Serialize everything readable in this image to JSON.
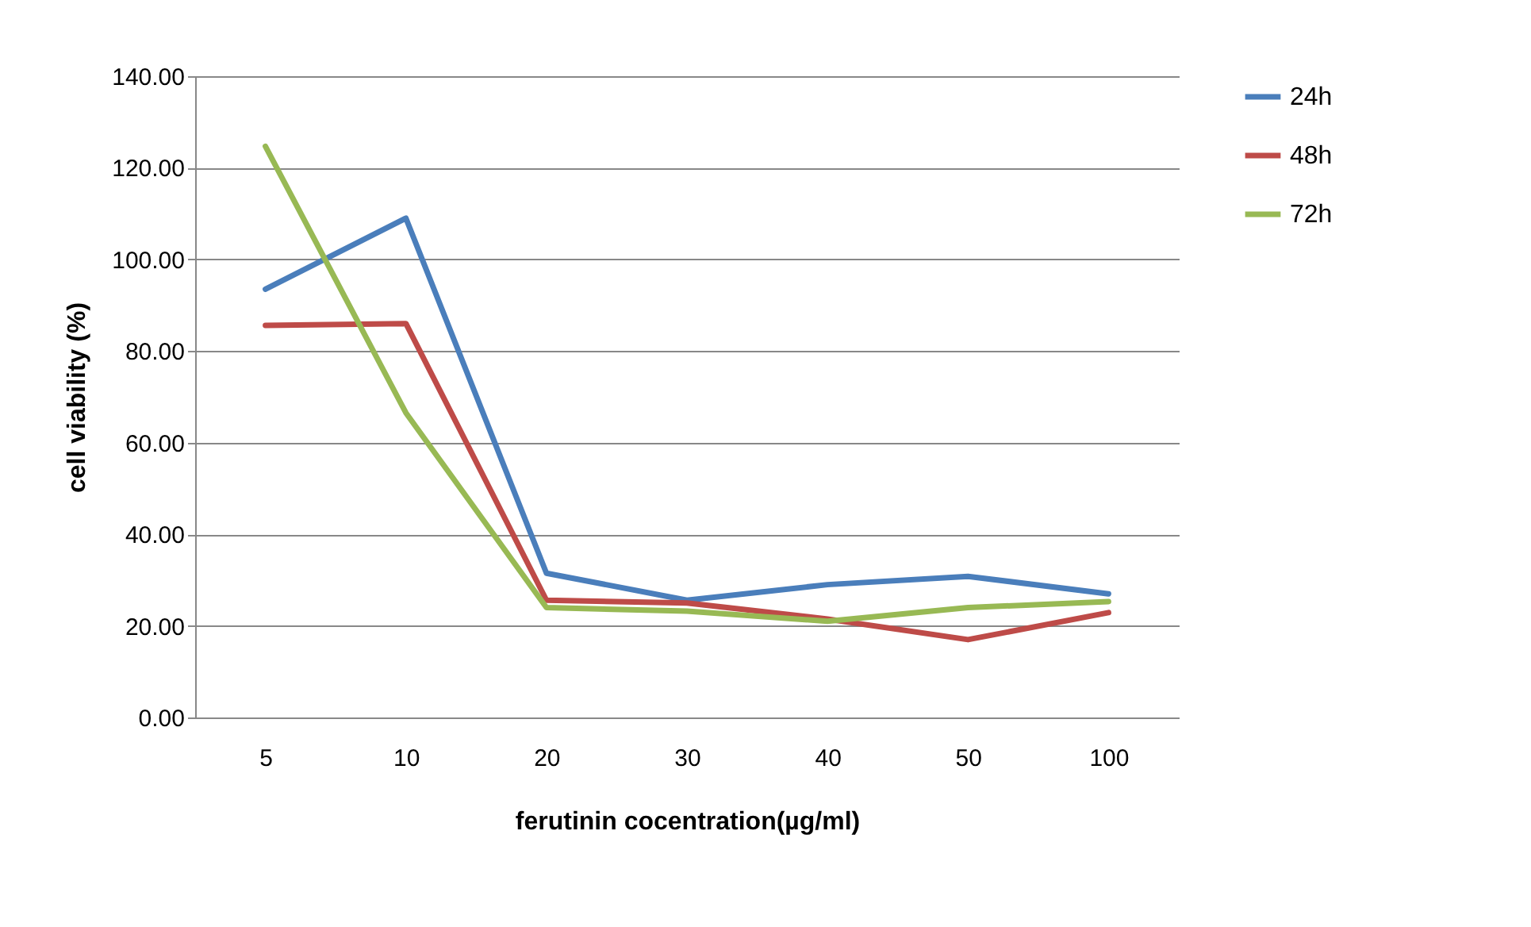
{
  "chart_data": {
    "type": "line",
    "xlabel": "ferutinin cocentration(µg/ml)",
    "ylabel": "cell viability (%)",
    "categories": [
      "5",
      "10",
      "20",
      "30",
      "40",
      "50",
      "100"
    ],
    "series": [
      {
        "name": "24h",
        "color": "#4a7ebb",
        "values": [
          93.5,
          109,
          31.5,
          25.6,
          29,
          30.8,
          27
        ]
      },
      {
        "name": "48h",
        "color": "#be4b48",
        "values": [
          85.6,
          86,
          25.6,
          25,
          21.5,
          17,
          22.9
        ]
      },
      {
        "name": "72h",
        "color": "#98b954",
        "values": [
          124.7,
          66.5,
          24,
          23.2,
          21,
          24,
          25.3
        ]
      }
    ],
    "ylim": [
      0,
      140
    ],
    "yticks": [
      {
        "value": 0,
        "label": "0.00"
      },
      {
        "value": 20,
        "label": "20.00"
      },
      {
        "value": 40,
        "label": "40.00"
      },
      {
        "value": 60,
        "label": "60.00"
      },
      {
        "value": 80,
        "label": "80.00"
      },
      {
        "value": 100,
        "label": "100.00"
      },
      {
        "value": 120,
        "label": "120.00"
      },
      {
        "value": 140,
        "label": "140.00"
      }
    ],
    "grid": "y",
    "legend": "right",
    "marker": "none",
    "line_style": "solid"
  }
}
